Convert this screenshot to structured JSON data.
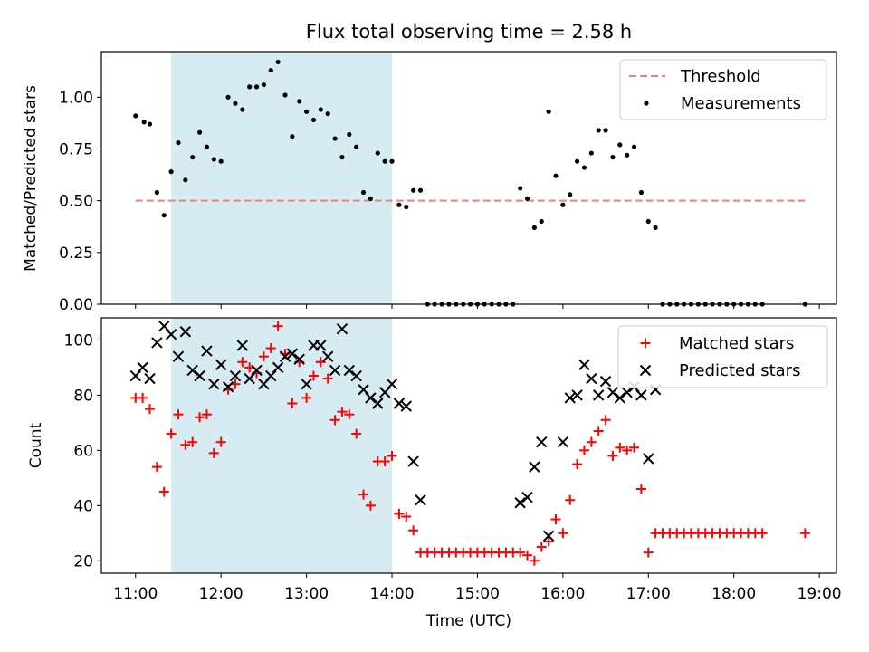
{
  "chart_data": [
    {
      "type": "scatter",
      "title": "Flux total observing time = 2.58 h",
      "ylabel": "Matched/Predicted stars",
      "xlabel": "",
      "xlim": [
        "10:36",
        "19:12"
      ],
      "ylim": [
        0,
        1.22
      ],
      "x_ticks": [
        "11:00",
        "12:00",
        "13:00",
        "14:00",
        "15:00",
        "16:00",
        "17:00",
        "18:00",
        "19:00"
      ],
      "y_ticks": [
        "0.00",
        "0.25",
        "0.50",
        "0.75",
        "1.00"
      ],
      "highlight_span": [
        "11:25",
        "14:00"
      ],
      "highlight_color": "#add8e6",
      "legend_position": "upper right",
      "series": [
        {
          "name": "Threshold",
          "kind": "dashed-line",
          "color": "#f08080",
          "points": [
            [
              "11:00",
              0.5
            ],
            [
              "18:50",
              0.5
            ]
          ]
        },
        {
          "name": "Measurements",
          "kind": "dots",
          "color": "#000000",
          "points": [
            [
              "11:00",
              0.91
            ],
            [
              "11:06",
              0.88
            ],
            [
              "11:10",
              0.87
            ],
            [
              "11:15",
              0.54
            ],
            [
              "11:20",
              0.43
            ],
            [
              "11:25",
              0.64
            ],
            [
              "11:30",
              0.78
            ],
            [
              "11:35",
              0.6
            ],
            [
              "11:40",
              0.71
            ],
            [
              "11:45",
              0.83
            ],
            [
              "11:50",
              0.76
            ],
            [
              "11:55",
              0.7
            ],
            [
              "12:00",
              0.69
            ],
            [
              "12:05",
              1.0
            ],
            [
              "12:10",
              0.97
            ],
            [
              "12:15",
              0.94
            ],
            [
              "12:20",
              1.05
            ],
            [
              "12:25",
              1.05
            ],
            [
              "12:30",
              1.06
            ],
            [
              "12:35",
              1.13
            ],
            [
              "12:40",
              1.17
            ],
            [
              "12:45",
              1.01
            ],
            [
              "12:50",
              0.81
            ],
            [
              "12:55",
              0.98
            ],
            [
              "13:00",
              0.93
            ],
            [
              "13:05",
              0.89
            ],
            [
              "13:10",
              0.94
            ],
            [
              "13:15",
              0.92
            ],
            [
              "13:20",
              0.8
            ],
            [
              "13:25",
              0.71
            ],
            [
              "13:30",
              0.82
            ],
            [
              "13:35",
              0.76
            ],
            [
              "13:40",
              0.54
            ],
            [
              "13:45",
              0.51
            ],
            [
              "13:50",
              0.73
            ],
            [
              "13:55",
              0.69
            ],
            [
              "14:00",
              0.69
            ],
            [
              "14:05",
              0.48
            ],
            [
              "14:10",
              0.47
            ],
            [
              "14:15",
              0.55
            ],
            [
              "14:20",
              0.55
            ],
            [
              "14:25",
              0.0
            ],
            [
              "14:30",
              0.0
            ],
            [
              "14:35",
              0.0
            ],
            [
              "14:40",
              0.0
            ],
            [
              "14:45",
              0.0
            ],
            [
              "14:50",
              0.0
            ],
            [
              "14:55",
              0.0
            ],
            [
              "15:00",
              0.0
            ],
            [
              "15:05",
              0.0
            ],
            [
              "15:10",
              0.0
            ],
            [
              "15:15",
              0.0
            ],
            [
              "15:20",
              0.0
            ],
            [
              "15:25",
              0.0
            ],
            [
              "15:30",
              0.56
            ],
            [
              "15:35",
              0.51
            ],
            [
              "15:40",
              0.37
            ],
            [
              "15:45",
              0.4
            ],
            [
              "15:50",
              0.93
            ],
            [
              "15:55",
              0.62
            ],
            [
              "16:00",
              0.48
            ],
            [
              "16:05",
              0.53
            ],
            [
              "16:10",
              0.69
            ],
            [
              "16:15",
              0.66
            ],
            [
              "16:20",
              0.73
            ],
            [
              "16:25",
              0.84
            ],
            [
              "16:30",
              0.84
            ],
            [
              "16:35",
              0.71
            ],
            [
              "16:40",
              0.77
            ],
            [
              "16:45",
              0.72
            ],
            [
              "16:50",
              0.76
            ],
            [
              "16:55",
              0.54
            ],
            [
              "17:00",
              0.4
            ],
            [
              "17:05",
              0.37
            ],
            [
              "17:10",
              0.0
            ],
            [
              "17:15",
              0.0
            ],
            [
              "17:20",
              0.0
            ],
            [
              "17:25",
              0.0
            ],
            [
              "17:30",
              0.0
            ],
            [
              "17:35",
              0.0
            ],
            [
              "17:40",
              0.0
            ],
            [
              "17:45",
              0.0
            ],
            [
              "17:50",
              0.0
            ],
            [
              "17:55",
              0.0
            ],
            [
              "18:00",
              0.0
            ],
            [
              "18:05",
              0.0
            ],
            [
              "18:10",
              0.0
            ],
            [
              "18:15",
              0.0
            ],
            [
              "18:20",
              0.0
            ],
            [
              "18:50",
              0.0
            ]
          ]
        }
      ]
    },
    {
      "type": "scatter",
      "title": "",
      "ylabel": "Count",
      "xlabel": "Time (UTC)",
      "xlim": [
        "10:36",
        "19:12"
      ],
      "ylim": [
        15.5,
        108
      ],
      "x_ticks": [
        "11:00",
        "12:00",
        "13:00",
        "14:00",
        "15:00",
        "16:00",
        "17:00",
        "18:00",
        "19:00"
      ],
      "y_ticks": [
        "20",
        "40",
        "60",
        "80",
        "100"
      ],
      "highlight_span": [
        "11:25",
        "14:00"
      ],
      "highlight_color": "#add8e6",
      "legend_position": "upper right",
      "series": [
        {
          "name": "Matched stars",
          "marker": "plus",
          "color": "#ff0000",
          "points": [
            [
              "11:00",
              79
            ],
            [
              "11:05",
              79
            ],
            [
              "11:10",
              75
            ],
            [
              "11:15",
              54
            ],
            [
              "11:20",
              45
            ],
            [
              "11:25",
              66
            ],
            [
              "11:30",
              73
            ],
            [
              "11:35",
              62
            ],
            [
              "11:40",
              63
            ],
            [
              "11:45",
              72
            ],
            [
              "11:50",
              73
            ],
            [
              "11:55",
              59
            ],
            [
              "12:00",
              63
            ],
            [
              "12:05",
              82
            ],
            [
              "12:10",
              84
            ],
            [
              "12:15",
              92
            ],
            [
              "12:20",
              90
            ],
            [
              "12:25",
              88
            ],
            [
              "12:30",
              94
            ],
            [
              "12:35",
              97
            ],
            [
              "12:40",
              105
            ],
            [
              "12:45",
              95
            ],
            [
              "12:50",
              77
            ],
            [
              "12:55",
              92
            ],
            [
              "13:00",
              79
            ],
            [
              "13:05",
              87
            ],
            [
              "13:10",
              92
            ],
            [
              "13:15",
              86
            ],
            [
              "13:20",
              71
            ],
            [
              "13:25",
              74
            ],
            [
              "13:30",
              73
            ],
            [
              "13:35",
              66
            ],
            [
              "13:40",
              44
            ],
            [
              "13:45",
              40
            ],
            [
              "13:50",
              56
            ],
            [
              "13:55",
              56
            ],
            [
              "14:00",
              58
            ],
            [
              "14:05",
              37
            ],
            [
              "14:10",
              36
            ],
            [
              "14:15",
              31
            ],
            [
              "14:20",
              23
            ],
            [
              "14:25",
              23
            ],
            [
              "14:30",
              23
            ],
            [
              "14:35",
              23
            ],
            [
              "14:40",
              23
            ],
            [
              "14:45",
              23
            ],
            [
              "14:50",
              23
            ],
            [
              "14:55",
              23
            ],
            [
              "15:00",
              23
            ],
            [
              "15:05",
              23
            ],
            [
              "15:10",
              23
            ],
            [
              "15:15",
              23
            ],
            [
              "15:20",
              23
            ],
            [
              "15:25",
              23
            ],
            [
              "15:30",
              23
            ],
            [
              "15:35",
              22
            ],
            [
              "15:40",
              20
            ],
            [
              "15:45",
              25
            ],
            [
              "15:50",
              27
            ],
            [
              "15:55",
              35
            ],
            [
              "16:00",
              30
            ],
            [
              "16:05",
              42
            ],
            [
              "16:10",
              55
            ],
            [
              "16:15",
              60
            ],
            [
              "16:20",
              63
            ],
            [
              "16:25",
              67
            ],
            [
              "16:30",
              71
            ],
            [
              "16:35",
              58
            ],
            [
              "16:40",
              61
            ],
            [
              "16:45",
              60
            ],
            [
              "16:50",
              61
            ],
            [
              "16:55",
              46
            ],
            [
              "17:00",
              23
            ],
            [
              "17:05",
              30
            ],
            [
              "17:10",
              30
            ],
            [
              "17:15",
              30
            ],
            [
              "17:20",
              30
            ],
            [
              "17:25",
              30
            ],
            [
              "17:30",
              30
            ],
            [
              "17:35",
              30
            ],
            [
              "17:40",
              30
            ],
            [
              "17:45",
              30
            ],
            [
              "17:50",
              30
            ],
            [
              "17:55",
              30
            ],
            [
              "18:00",
              30
            ],
            [
              "18:05",
              30
            ],
            [
              "18:10",
              30
            ],
            [
              "18:15",
              30
            ],
            [
              "18:20",
              30
            ],
            [
              "18:50",
              30
            ]
          ]
        },
        {
          "name": "Predicted stars",
          "marker": "x",
          "color": "#000000",
          "points": [
            [
              "11:00",
              87
            ],
            [
              "11:05",
              90
            ],
            [
              "11:10",
              86
            ],
            [
              "11:15",
              99
            ],
            [
              "11:20",
              105
            ],
            [
              "11:25",
              102
            ],
            [
              "11:30",
              94
            ],
            [
              "11:35",
              103
            ],
            [
              "11:40",
              89
            ],
            [
              "11:45",
              87
            ],
            [
              "11:50",
              96
            ],
            [
              "11:55",
              84
            ],
            [
              "12:00",
              91
            ],
            [
              "12:05",
              83
            ],
            [
              "12:10",
              87
            ],
            [
              "12:15",
              98
            ],
            [
              "12:20",
              86
            ],
            [
              "12:25",
              89
            ],
            [
              "12:30",
              84
            ],
            [
              "12:35",
              87
            ],
            [
              "12:40",
              90
            ],
            [
              "12:45",
              94
            ],
            [
              "12:50",
              95
            ],
            [
              "12:55",
              93
            ],
            [
              "13:00",
              84
            ],
            [
              "13:05",
              98
            ],
            [
              "13:10",
              98
            ],
            [
              "13:15",
              94
            ],
            [
              "13:20",
              89
            ],
            [
              "13:25",
              104
            ],
            [
              "13:30",
              89
            ],
            [
              "13:35",
              87
            ],
            [
              "13:40",
              82
            ],
            [
              "13:45",
              79
            ],
            [
              "13:50",
              77
            ],
            [
              "13:55",
              81
            ],
            [
              "14:00",
              84
            ],
            [
              "14:05",
              77
            ],
            [
              "14:10",
              76
            ],
            [
              "14:15",
              56
            ],
            [
              "14:20",
              42
            ],
            [
              "15:30",
              41
            ],
            [
              "15:35",
              43
            ],
            [
              "15:40",
              54
            ],
            [
              "15:45",
              63
            ],
            [
              "15:50",
              29
            ],
            [
              "16:00",
              63
            ],
            [
              "16:05",
              79
            ],
            [
              "16:10",
              80
            ],
            [
              "16:15",
              91
            ],
            [
              "16:20",
              86
            ],
            [
              "16:25",
              80
            ],
            [
              "16:30",
              85
            ],
            [
              "16:35",
              81
            ],
            [
              "16:40",
              79
            ],
            [
              "16:45",
              81
            ],
            [
              "16:50",
              83
            ],
            [
              "16:55",
              80
            ],
            [
              "17:00",
              57
            ],
            [
              "17:05",
              82
            ]
          ]
        }
      ]
    }
  ]
}
